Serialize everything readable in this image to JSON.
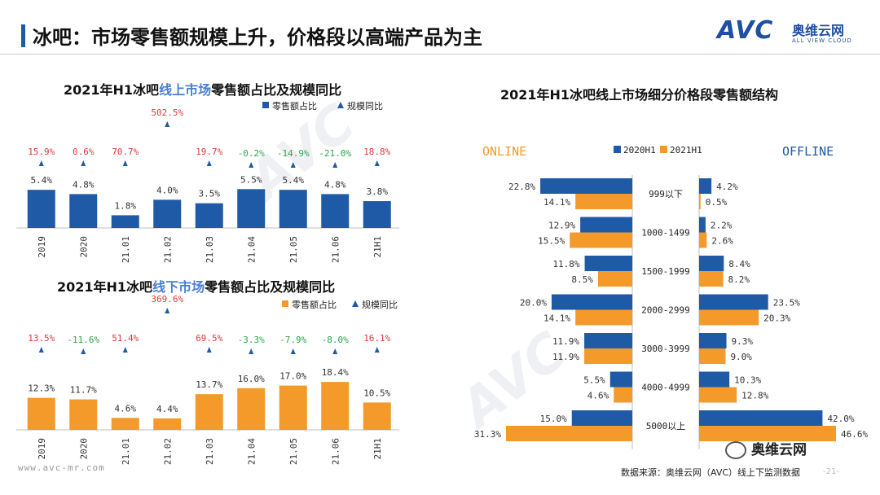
{
  "header": {
    "title": "冰吧：市场零售额规模上升，价格段以高端产品为主",
    "logo_mark": "AVC",
    "logo_cn": "奥维云网",
    "logo_en": "ALL VIEW CLOUD"
  },
  "colors": {
    "blue": "#1f5aa6",
    "orange": "#f39a2b",
    "red": "#e03a3a",
    "green": "#2aa54a",
    "title_blue": "#4a7fd0"
  },
  "chart_data": [
    {
      "type": "bar",
      "title_parts": [
        "2021年H1冰吧",
        "线上市场",
        "零售额占比及规模同比"
      ],
      "legend": [
        "零售额占比",
        "规模同比"
      ],
      "categories": [
        "2019",
        "2020",
        "21.01",
        "21.02",
        "21.03",
        "21.04",
        "21.05",
        "21.06",
        "21H1"
      ],
      "share_values": [
        5.4,
        4.8,
        1.8,
        4.0,
        3.5,
        5.5,
        5.4,
        4.8,
        3.8
      ],
      "share_labels": [
        "5.4%",
        "4.8%",
        "1.8%",
        "4.0%",
        "3.5%",
        "5.5%",
        "5.4%",
        "4.8%",
        "3.8%"
      ],
      "yoy_values": [
        15.9,
        0.6,
        70.7,
        502.5,
        19.7,
        -0.2,
        -14.9,
        -21.0,
        18.8
      ],
      "yoy_labels": [
        "15.9%",
        "0.6%",
        "70.7%",
        "502.5%",
        "19.7%",
        "-0.2%",
        "-14.9%",
        "-21.0%",
        "18.8%"
      ],
      "share_max": 6
    },
    {
      "type": "bar",
      "title_parts": [
        "2021年H1冰吧",
        "线下市场",
        "零售额占比及规模同比"
      ],
      "legend": [
        "零售额占比",
        "规模同比"
      ],
      "categories": [
        "2019",
        "2020",
        "21.01",
        "21.02",
        "21.03",
        "21.04",
        "21.05",
        "21.06",
        "21H1"
      ],
      "share_values": [
        12.3,
        11.7,
        4.6,
        4.4,
        13.7,
        16.0,
        17.0,
        18.4,
        10.5
      ],
      "share_labels": [
        "12.3%",
        "11.7%",
        "4.6%",
        "4.4%",
        "13.7%",
        "16.0%",
        "17.0%",
        "18.4%",
        "10.5%"
      ],
      "yoy_values": [
        13.5,
        -11.6,
        51.4,
        369.6,
        69.5,
        -3.3,
        -7.9,
        -8.0,
        16.1
      ],
      "yoy_labels": [
        "13.5%",
        "-11.6%",
        "51.4%",
        "369.6%",
        "69.5%",
        "-3.3%",
        "-7.9%",
        "-8.0%",
        "16.1%"
      ],
      "share_max": 20
    },
    {
      "type": "bar",
      "orientation": "horizontal-butterfly",
      "title": "2021年H1冰吧线上市场细分价格段零售额结构",
      "left_label": "ONLINE",
      "right_label": "OFFLINE",
      "legend": [
        "2020H1",
        "2021H1"
      ],
      "categories": [
        "999以下",
        "1000-1499",
        "1500-1999",
        "2000-2999",
        "3000-3999",
        "4000-4999",
        "5000以上"
      ],
      "online_2020h1": [
        22.8,
        12.9,
        11.8,
        20.0,
        11.9,
        5.5,
        15.0
      ],
      "online_2021h1": [
        14.1,
        15.5,
        8.5,
        14.1,
        11.9,
        4.6,
        31.3
      ],
      "offline_2020h1": [
        4.2,
        2.2,
        8.4,
        23.5,
        9.3,
        10.3,
        42.0
      ],
      "offline_2021h1": [
        0.5,
        2.6,
        8.2,
        20.3,
        9.0,
        12.8,
        46.6
      ],
      "online_2020h1_labels": [
        "22.8%",
        "12.9%",
        "11.8%",
        "20.0%",
        "11.9%",
        "5.5%",
        "15.0%"
      ],
      "online_2021h1_labels": [
        "14.1%",
        "15.5%",
        "8.5%",
        "14.1%",
        "11.9%",
        "4.6%",
        "31.3%"
      ],
      "offline_2020h1_labels": [
        "4.2%",
        "2.2%",
        "8.4%",
        "23.5%",
        "9.3%",
        "10.3%",
        "42.0%"
      ],
      "offline_2021h1_labels": [
        "0.5%",
        "2.6%",
        "8.2%",
        "20.3%",
        "9.0%",
        "12.8%",
        "46.6%"
      ]
    }
  ],
  "footer": {
    "url": "www.avc-mr.com",
    "source": "数据来源：奥维云网（AVC）线上下监测数据",
    "page": "-21-",
    "wechat": "奥维云网"
  }
}
